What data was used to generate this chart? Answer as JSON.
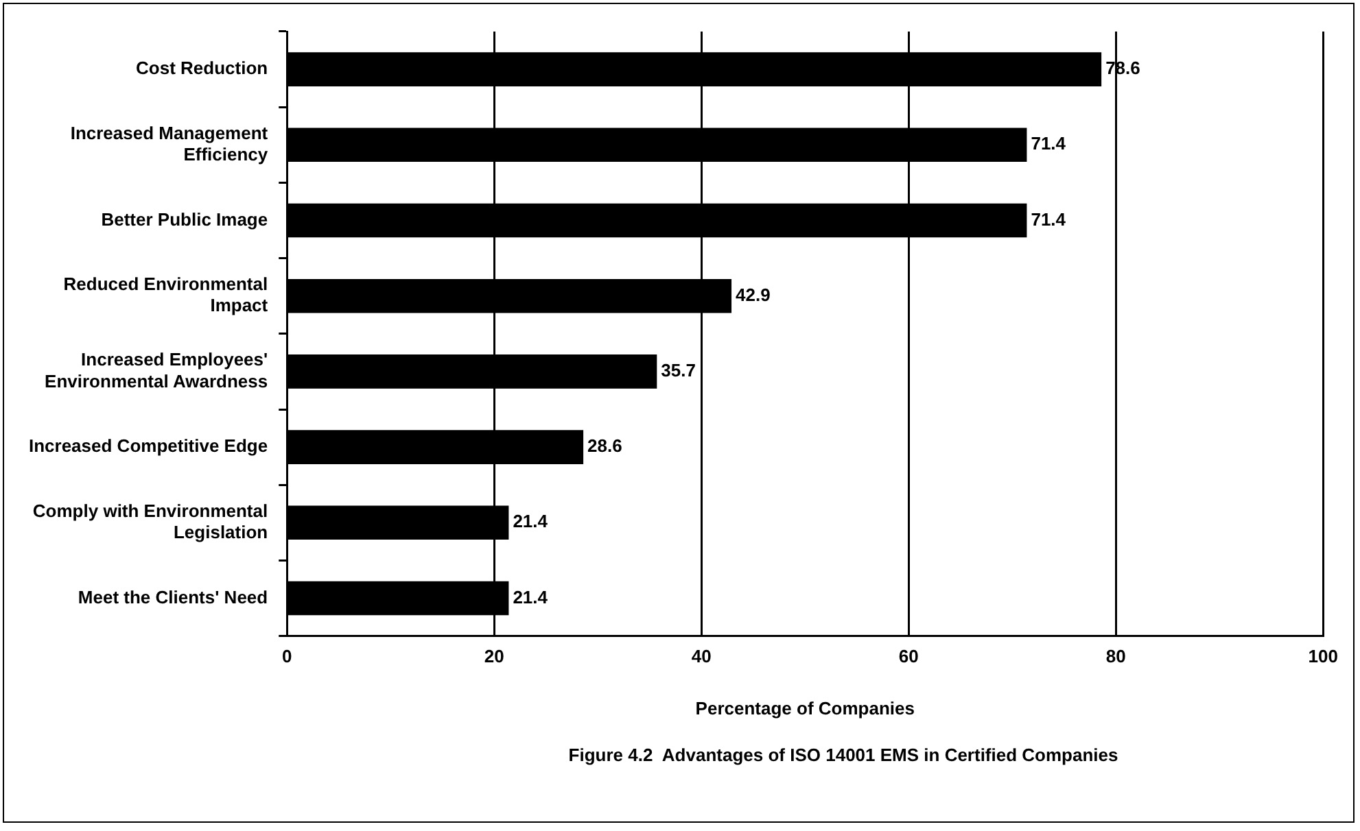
{
  "chart_data": {
    "type": "bar",
    "orientation": "horizontal",
    "categories": [
      "Cost Reduction",
      "Increased Management Efficiency",
      "Better Public Image",
      "Reduced Environmental Impact",
      "Increased Employees' Environmental Awardness",
      "Increased Competitive Edge",
      "Comply with Environmental Legislation",
      "Meet the Clients' Need"
    ],
    "values": [
      78.6,
      71.4,
      71.4,
      42.9,
      35.7,
      28.6,
      21.4,
      21.4
    ],
    "color": "#000000",
    "xlim": [
      0,
      100
    ],
    "xticks": [
      0,
      20,
      40,
      60,
      80,
      100
    ],
    "xlabel": "Percentage of Companies",
    "annotations": [
      "Figure 4.2  Advantages of ISO 14001 EMS in Certified Companies"
    ],
    "grid": "x",
    "data_labels": true,
    "legend": false
  }
}
